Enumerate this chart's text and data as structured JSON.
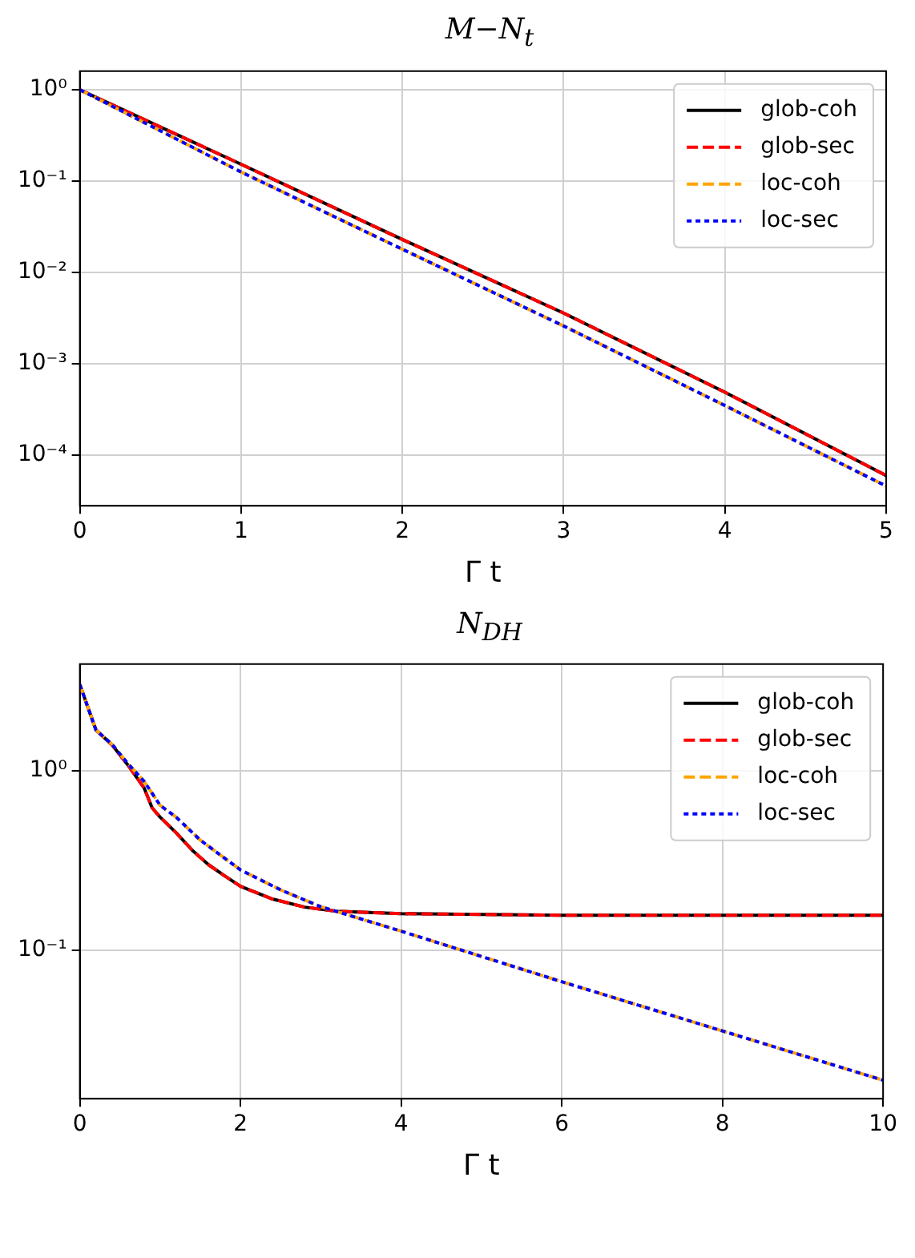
{
  "chart_data": [
    {
      "type": "line",
      "title": "M−N$_{t}$",
      "xlabel": "Γ t",
      "log": "y",
      "grid": true,
      "legend": "top right",
      "xlim": [
        0,
        5
      ],
      "xticks": [
        0,
        1,
        2,
        3,
        4,
        5
      ],
      "ylim": [
        2.8e-05,
        1.6
      ],
      "yticks": [
        {
          "value": 1,
          "label": "10⁰"
        },
        {
          "value": 0.1,
          "label": "10⁻¹"
        },
        {
          "value": 0.01,
          "label": "10⁻²"
        },
        {
          "value": 0.001,
          "label": "10⁻³"
        },
        {
          "value": 0.0001,
          "label": "10⁻⁴"
        }
      ],
      "series": [
        {
          "name": "glob-coh",
          "color": "#000000",
          "line_style": "solid",
          "x": [
            0,
            1,
            2,
            3,
            4,
            5
          ],
          "values": [
            1,
            0.153,
            0.023,
            0.0036,
            0.00049,
            6e-05
          ]
        },
        {
          "name": "glob-sec",
          "color": "#ff0000",
          "line_style": "dashed",
          "x": [
            0,
            1,
            2,
            3,
            4,
            5
          ],
          "values": [
            1,
            0.153,
            0.023,
            0.0036,
            0.00049,
            6e-05
          ]
        },
        {
          "name": "loc-coh",
          "color": "#ffa500",
          "line_style": "dashed",
          "x": [
            0,
            1,
            2,
            3,
            4,
            5
          ],
          "values": [
            1,
            0.126,
            0.018,
            0.0026,
            0.00035,
            4.6e-05
          ]
        },
        {
          "name": "loc-sec",
          "color": "#0000ff",
          "line_style": "dotted",
          "x": [
            0,
            1,
            2,
            3,
            4,
            5
          ],
          "values": [
            1,
            0.126,
            0.018,
            0.0026,
            0.00035,
            4.6e-05
          ]
        }
      ]
    },
    {
      "type": "line",
      "title": "N$_{DH}$",
      "xlabel": "Γ t",
      "log": "y",
      "grid": true,
      "legend": "top right",
      "xlim": [
        0,
        10
      ],
      "xticks": [
        0,
        2,
        4,
        6,
        8,
        10
      ],
      "ylim": [
        0.015,
        3.9
      ],
      "yticks": [
        {
          "value": 1,
          "label": "10⁰"
        },
        {
          "value": 0.1,
          "label": "10⁻¹"
        }
      ],
      "series": [
        {
          "name": "glob-coh",
          "color": "#000000",
          "line_style": "solid",
          "x": [
            0,
            0.2,
            0.4,
            0.6,
            0.8,
            0.9,
            1,
            1.2,
            1.4,
            1.6,
            1.8,
            2,
            2.4,
            2.8,
            3.2,
            4,
            6,
            8,
            10
          ],
          "values": [
            3.0,
            1.68,
            1.39,
            1.07,
            0.8,
            0.62,
            0.55,
            0.45,
            0.36,
            0.3,
            0.26,
            0.227,
            0.193,
            0.174,
            0.165,
            0.16,
            0.157,
            0.157,
            0.157
          ]
        },
        {
          "name": "glob-sec",
          "color": "#ff0000",
          "line_style": "dashed",
          "x": [
            0,
            0.2,
            0.4,
            0.6,
            0.8,
            0.9,
            1,
            1.2,
            1.4,
            1.6,
            1.8,
            2,
            2.4,
            2.8,
            3.2,
            4,
            6,
            8,
            10
          ],
          "values": [
            3.0,
            1.68,
            1.39,
            1.07,
            0.8,
            0.62,
            0.55,
            0.45,
            0.36,
            0.3,
            0.26,
            0.227,
            0.193,
            0.174,
            0.165,
            0.16,
            0.157,
            0.157,
            0.157
          ]
        },
        {
          "name": "loc-coh",
          "color": "#ffa500",
          "line_style": "dashed",
          "x": [
            0,
            0.2,
            0.4,
            0.6,
            0.8,
            1,
            1.2,
            1.5,
            2,
            2.5,
            3,
            4,
            6,
            8,
            10
          ],
          "values": [
            3.0,
            1.68,
            1.4,
            1.09,
            0.87,
            0.64,
            0.55,
            0.41,
            0.28,
            0.217,
            0.175,
            0.128,
            0.067,
            0.0357,
            0.019
          ]
        },
        {
          "name": "loc-sec",
          "color": "#0000ff",
          "line_style": "dotted",
          "x": [
            0,
            0.2,
            0.4,
            0.6,
            0.8,
            1,
            1.2,
            1.5,
            2,
            2.5,
            3,
            4,
            6,
            8,
            10
          ],
          "values": [
            3.0,
            1.68,
            1.4,
            1.09,
            0.87,
            0.64,
            0.55,
            0.41,
            0.28,
            0.217,
            0.175,
            0.128,
            0.067,
            0.0357,
            0.019
          ]
        }
      ]
    }
  ]
}
